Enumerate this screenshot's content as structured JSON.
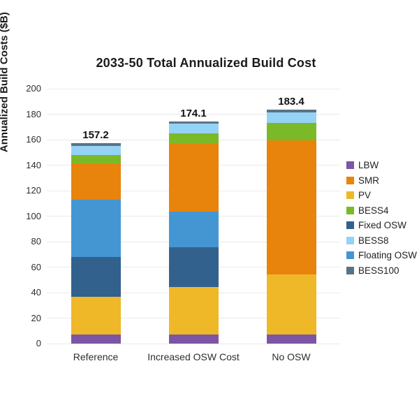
{
  "title": "2033-50 Total Annualized Build Cost",
  "chart_data": {
    "type": "bar",
    "stacked": true,
    "title": "2033-50 Total Annualized Build Cost",
    "ylabel": "Annualized Build Costs ($B)",
    "xlabel": "",
    "categories": [
      "Reference",
      "Increased OSW Cost",
      "No OSW"
    ],
    "total_labels": [
      "157.2",
      "174.1",
      "183.4"
    ],
    "totals": [
      157.2,
      174.1,
      183.4
    ],
    "series": [
      {
        "name": "LBW",
        "color": "#7d55a5",
        "values": [
          7.0,
          7.0,
          7.0
        ]
      },
      {
        "name": "PV",
        "color": "#efb829",
        "values": [
          29.5,
          37.5,
          47.5
        ]
      },
      {
        "name": "Fixed OSW",
        "color": "#33618e",
        "values": [
          31.5,
          31.0,
          0
        ]
      },
      {
        "name": "Floating OSW",
        "color": "#4496d3",
        "values": [
          45.0,
          28.0,
          0
        ]
      },
      {
        "name": "SMR",
        "color": "#e8830c",
        "values": [
          28.5,
          53.5,
          105.0
        ]
      },
      {
        "name": "BESS4",
        "color": "#7cb928",
        "values": [
          6.5,
          8.2,
          13.5
        ]
      },
      {
        "name": "BESS8",
        "color": "#94d3f6",
        "values": [
          7.0,
          7.5,
          8.5
        ]
      },
      {
        "name": "BESS100",
        "color": "#5a7384",
        "values": [
          2.2,
          1.4,
          1.9
        ]
      }
    ],
    "legend": [
      "LBW",
      "SMR",
      "PV",
      "BESS4",
      "Fixed OSW",
      "BESS8",
      "Floating OSW",
      "BESS100"
    ],
    "ylim": [
      0,
      200
    ],
    "ytick_step": 20,
    "grid": true,
    "legend_position": "right",
    "colors": {
      "background": "#ffffff",
      "gridline": "#e8eaeb",
      "text": "#1a1a1a"
    }
  }
}
